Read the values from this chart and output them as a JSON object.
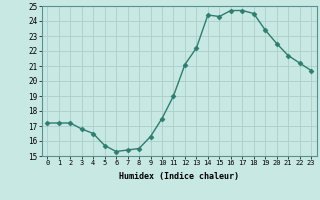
{
  "x": [
    0,
    1,
    2,
    3,
    4,
    5,
    6,
    7,
    8,
    9,
    10,
    11,
    12,
    13,
    14,
    15,
    16,
    17,
    18,
    19,
    20,
    21,
    22,
    23
  ],
  "y": [
    17.2,
    17.2,
    17.2,
    16.8,
    16.5,
    15.7,
    15.3,
    15.4,
    15.5,
    16.3,
    17.5,
    19.0,
    21.1,
    22.2,
    24.4,
    24.3,
    24.7,
    24.7,
    24.5,
    23.4,
    22.5,
    21.7,
    21.2,
    20.7
  ],
  "line_color": "#2e7d6e",
  "marker": "D",
  "marker_size": 2.5,
  "bg_color": "#c8e8e4",
  "grid_color": "#aad0cc",
  "xlabel": "Humidex (Indice chaleur)",
  "xlim": [
    -0.5,
    23.5
  ],
  "ylim": [
    15,
    25
  ],
  "yticks": [
    15,
    16,
    17,
    18,
    19,
    20,
    21,
    22,
    23,
    24,
    25
  ],
  "xticks": [
    0,
    1,
    2,
    3,
    4,
    5,
    6,
    7,
    8,
    9,
    10,
    11,
    12,
    13,
    14,
    15,
    16,
    17,
    18,
    19,
    20,
    21,
    22,
    23
  ],
  "xtick_labels": [
    "0",
    "1",
    "2",
    "3",
    "4",
    "5",
    "6",
    "7",
    "8",
    "9",
    "10",
    "11",
    "12",
    "13",
    "14",
    "15",
    "16",
    "17",
    "18",
    "19",
    "20",
    "21",
    "22",
    "23"
  ]
}
